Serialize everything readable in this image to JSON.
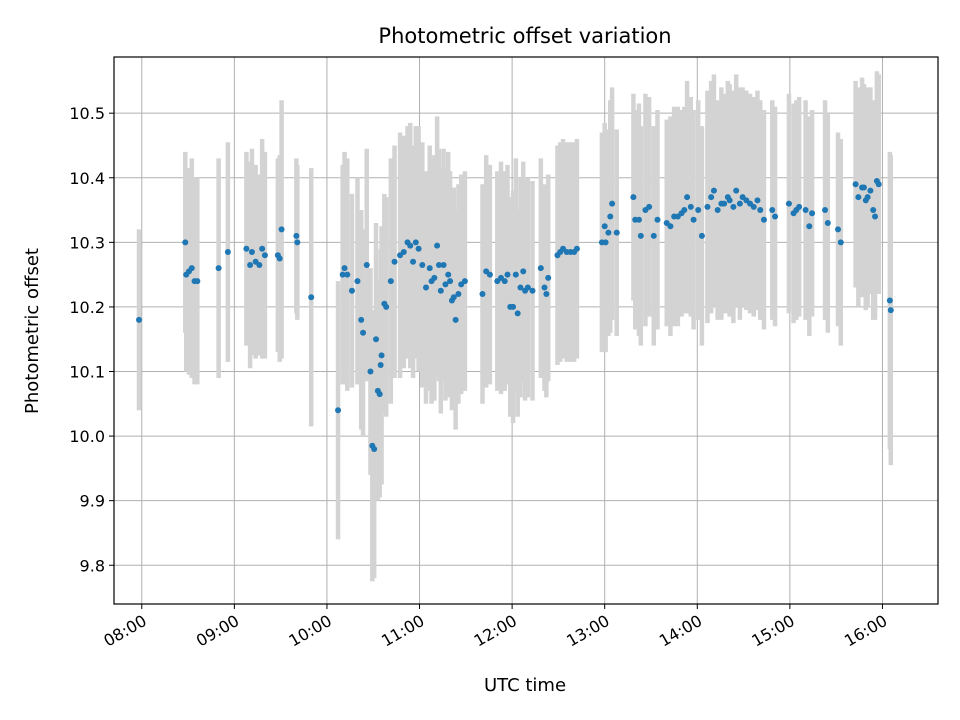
{
  "chart_data": {
    "type": "scatter",
    "title": "Photometric offset variation",
    "xlabel": "UTC time",
    "ylabel": "Photometric offset",
    "grid": true,
    "colors": {
      "point": "#1f77b4",
      "errorbar": "#d3d3d3",
      "grid": "#b0b0b0",
      "axis": "#000000"
    },
    "xlim": [
      7.7,
      16.6
    ],
    "ylim": [
      9.74,
      10.587
    ],
    "x_ticks": [
      {
        "value": 8,
        "label": "08:00"
      },
      {
        "value": 9,
        "label": "09:00"
      },
      {
        "value": 10,
        "label": "10:00"
      },
      {
        "value": 11,
        "label": "11:00"
      },
      {
        "value": 12,
        "label": "12:00"
      },
      {
        "value": 13,
        "label": "13:00"
      },
      {
        "value": 14,
        "label": "14:00"
      },
      {
        "value": 15,
        "label": "15:00"
      },
      {
        "value": 16,
        "label": "16:00"
      }
    ],
    "y_ticks": [
      {
        "value": 9.8,
        "label": "9.8"
      },
      {
        "value": 9.9,
        "label": "9.9"
      },
      {
        "value": 10.0,
        "label": "10.0"
      },
      {
        "value": 10.1,
        "label": "10.1"
      },
      {
        "value": 10.2,
        "label": "10.2"
      },
      {
        "value": 10.3,
        "label": "10.3"
      },
      {
        "value": 10.4,
        "label": "10.4"
      },
      {
        "value": 10.5,
        "label": "10.5"
      }
    ],
    "series": [
      {
        "name": "Photometric offset",
        "points": [
          [
            7.97,
            10.18,
            0.14
          ],
          [
            8.47,
            10.3,
            0.14
          ],
          [
            8.48,
            10.25,
            0.15
          ],
          [
            8.51,
            10.255,
            0.16
          ],
          [
            8.54,
            10.26,
            0.17
          ],
          [
            8.57,
            10.24,
            0.16
          ],
          [
            8.6,
            10.24,
            0.16
          ],
          [
            8.83,
            10.26,
            0.17
          ],
          [
            8.93,
            10.285,
            0.17
          ],
          [
            9.13,
            10.29,
            0.15
          ],
          [
            9.17,
            10.265,
            0.16
          ],
          [
            9.19,
            10.285,
            0.16
          ],
          [
            9.23,
            10.27,
            0.15
          ],
          [
            9.27,
            10.265,
            0.14
          ],
          [
            9.3,
            10.29,
            0.17
          ],
          [
            9.33,
            10.28,
            0.16
          ],
          [
            9.47,
            10.28,
            0.15
          ],
          [
            9.49,
            10.275,
            0.16
          ],
          [
            9.51,
            10.32,
            0.2
          ],
          [
            9.67,
            10.31,
            0.12
          ],
          [
            9.68,
            10.3,
            0.12
          ],
          [
            9.83,
            10.215,
            0.2
          ],
          [
            10.12,
            10.04,
            0.2
          ],
          [
            10.17,
            10.25,
            0.17
          ],
          [
            10.19,
            10.26,
            0.18
          ],
          [
            10.22,
            10.25,
            0.18
          ],
          [
            10.27,
            10.225,
            0.15
          ],
          [
            10.33,
            10.24,
            0.16
          ],
          [
            10.37,
            10.18,
            0.17
          ],
          [
            10.39,
            10.16,
            0.16
          ],
          [
            10.43,
            10.265,
            0.18
          ],
          [
            10.47,
            10.1,
            0.16
          ],
          [
            10.49,
            9.985,
            0.21
          ],
          [
            10.51,
            9.98,
            0.2
          ],
          [
            10.53,
            10.15,
            0.18
          ],
          [
            10.55,
            10.07,
            0.17
          ],
          [
            10.57,
            10.065,
            0.16
          ],
          [
            10.58,
            10.11,
            0.18
          ],
          [
            10.59,
            10.125,
            0.2
          ],
          [
            10.62,
            10.205,
            0.17
          ],
          [
            10.64,
            10.2,
            0.17
          ],
          [
            10.69,
            10.24,
            0.19
          ],
          [
            10.73,
            10.27,
            0.18
          ],
          [
            10.79,
            10.28,
            0.19
          ],
          [
            10.83,
            10.285,
            0.18
          ],
          [
            10.87,
            10.3,
            0.18
          ],
          [
            10.9,
            10.295,
            0.19
          ],
          [
            10.93,
            10.27,
            0.18
          ],
          [
            10.96,
            10.3,
            0.18
          ],
          [
            10.99,
            10.29,
            0.19
          ],
          [
            11.03,
            10.265,
            0.19
          ],
          [
            11.07,
            10.23,
            0.18
          ],
          [
            11.11,
            10.26,
            0.19
          ],
          [
            11.13,
            10.24,
            0.19
          ],
          [
            11.16,
            10.245,
            0.19
          ],
          [
            11.19,
            10.295,
            0.2
          ],
          [
            11.21,
            10.265,
            0.18
          ],
          [
            11.23,
            10.225,
            0.19
          ],
          [
            11.26,
            10.265,
            0.18
          ],
          [
            11.28,
            10.235,
            0.18
          ],
          [
            11.31,
            10.25,
            0.19
          ],
          [
            11.33,
            10.24,
            0.17
          ],
          [
            11.35,
            10.21,
            0.17
          ],
          [
            11.37,
            10.215,
            0.17
          ],
          [
            11.39,
            10.18,
            0.17
          ],
          [
            11.42,
            10.22,
            0.17
          ],
          [
            11.45,
            10.235,
            0.17
          ],
          [
            11.49,
            10.24,
            0.17
          ],
          [
            11.68,
            10.22,
            0.17
          ],
          [
            11.72,
            10.255,
            0.18
          ],
          [
            11.76,
            10.25,
            0.17
          ],
          [
            11.84,
            10.24,
            0.17
          ],
          [
            11.88,
            10.245,
            0.18
          ],
          [
            11.92,
            10.24,
            0.17
          ],
          [
            11.95,
            10.25,
            0.17
          ],
          [
            11.98,
            10.2,
            0.17
          ],
          [
            12.01,
            10.2,
            0.18
          ],
          [
            12.04,
            10.25,
            0.18
          ],
          [
            12.06,
            10.19,
            0.16
          ],
          [
            12.09,
            10.23,
            0.17
          ],
          [
            12.12,
            10.255,
            0.17
          ],
          [
            12.14,
            10.225,
            0.17
          ],
          [
            12.17,
            10.23,
            0.17
          ],
          [
            12.22,
            10.225,
            0.17
          ],
          [
            12.31,
            10.26,
            0.17
          ],
          [
            12.35,
            10.23,
            0.16
          ],
          [
            12.37,
            10.22,
            0.16
          ],
          [
            12.39,
            10.245,
            0.16
          ],
          [
            12.49,
            10.28,
            0.17
          ],
          [
            12.52,
            10.285,
            0.17
          ],
          [
            12.55,
            10.29,
            0.17
          ],
          [
            12.59,
            10.285,
            0.17
          ],
          [
            12.63,
            10.285,
            0.17
          ],
          [
            12.67,
            10.285,
            0.17
          ],
          [
            12.7,
            10.29,
            0.17
          ],
          [
            12.97,
            10.3,
            0.17
          ],
          [
            13.0,
            10.325,
            0.16
          ],
          [
            13.01,
            10.3,
            0.17
          ],
          [
            13.04,
            10.315,
            0.16
          ],
          [
            13.06,
            10.34,
            0.18
          ],
          [
            13.08,
            10.36,
            0.18
          ],
          [
            13.13,
            10.315,
            0.16
          ],
          [
            13.31,
            10.37,
            0.16
          ],
          [
            13.33,
            10.335,
            0.17
          ],
          [
            13.37,
            10.335,
            0.18
          ],
          [
            13.39,
            10.31,
            0.17
          ],
          [
            13.44,
            10.35,
            0.18
          ],
          [
            13.48,
            10.355,
            0.17
          ],
          [
            13.53,
            10.31,
            0.17
          ],
          [
            13.57,
            10.335,
            0.17
          ],
          [
            13.67,
            10.33,
            0.16
          ],
          [
            13.71,
            10.325,
            0.17
          ],
          [
            13.75,
            10.34,
            0.17
          ],
          [
            13.79,
            10.34,
            0.17
          ],
          [
            13.83,
            10.345,
            0.16
          ],
          [
            13.86,
            10.35,
            0.16
          ],
          [
            13.89,
            10.37,
            0.18
          ],
          [
            13.93,
            10.355,
            0.17
          ],
          [
            13.96,
            10.335,
            0.17
          ],
          [
            14.01,
            10.35,
            0.17
          ],
          [
            14.05,
            10.31,
            0.17
          ],
          [
            14.11,
            10.355,
            0.18
          ],
          [
            14.15,
            10.37,
            0.18
          ],
          [
            14.18,
            10.38,
            0.18
          ],
          [
            14.22,
            10.35,
            0.17
          ],
          [
            14.26,
            10.36,
            0.18
          ],
          [
            14.29,
            10.36,
            0.17
          ],
          [
            14.33,
            10.37,
            0.18
          ],
          [
            14.35,
            10.365,
            0.18
          ],
          [
            14.39,
            10.355,
            0.18
          ],
          [
            14.42,
            10.38,
            0.18
          ],
          [
            14.46,
            10.36,
            0.18
          ],
          [
            14.49,
            10.37,
            0.17
          ],
          [
            14.53,
            10.365,
            0.17
          ],
          [
            14.57,
            10.36,
            0.17
          ],
          [
            14.61,
            10.355,
            0.17
          ],
          [
            14.65,
            10.365,
            0.17
          ],
          [
            14.68,
            10.35,
            0.17
          ],
          [
            14.72,
            10.335,
            0.17
          ],
          [
            14.81,
            10.35,
            0.17
          ],
          [
            14.84,
            10.34,
            0.17
          ],
          [
            14.99,
            10.36,
            0.17
          ],
          [
            15.04,
            10.345,
            0.17
          ],
          [
            15.07,
            10.35,
            0.17
          ],
          [
            15.1,
            10.355,
            0.17
          ],
          [
            15.17,
            10.35,
            0.17
          ],
          [
            15.21,
            10.325,
            0.17
          ],
          [
            15.24,
            10.345,
            0.16
          ],
          [
            15.38,
            10.35,
            0.17
          ],
          [
            15.41,
            10.33,
            0.17
          ],
          [
            15.52,
            10.32,
            0.15
          ],
          [
            15.55,
            10.3,
            0.16
          ],
          [
            15.71,
            10.39,
            0.16
          ],
          [
            15.74,
            10.37,
            0.17
          ],
          [
            15.78,
            10.385,
            0.17
          ],
          [
            15.8,
            10.385,
            0.16
          ],
          [
            15.82,
            10.365,
            0.17
          ],
          [
            15.84,
            10.37,
            0.17
          ],
          [
            15.87,
            10.38,
            0.16
          ],
          [
            15.9,
            10.35,
            0.17
          ],
          [
            15.92,
            10.34,
            0.16
          ],
          [
            15.94,
            10.395,
            0.17
          ],
          [
            15.96,
            10.39,
            0.17
          ],
          [
            16.08,
            10.21,
            0.23
          ],
          [
            16.09,
            10.195,
            0.24
          ]
        ]
      }
    ]
  }
}
